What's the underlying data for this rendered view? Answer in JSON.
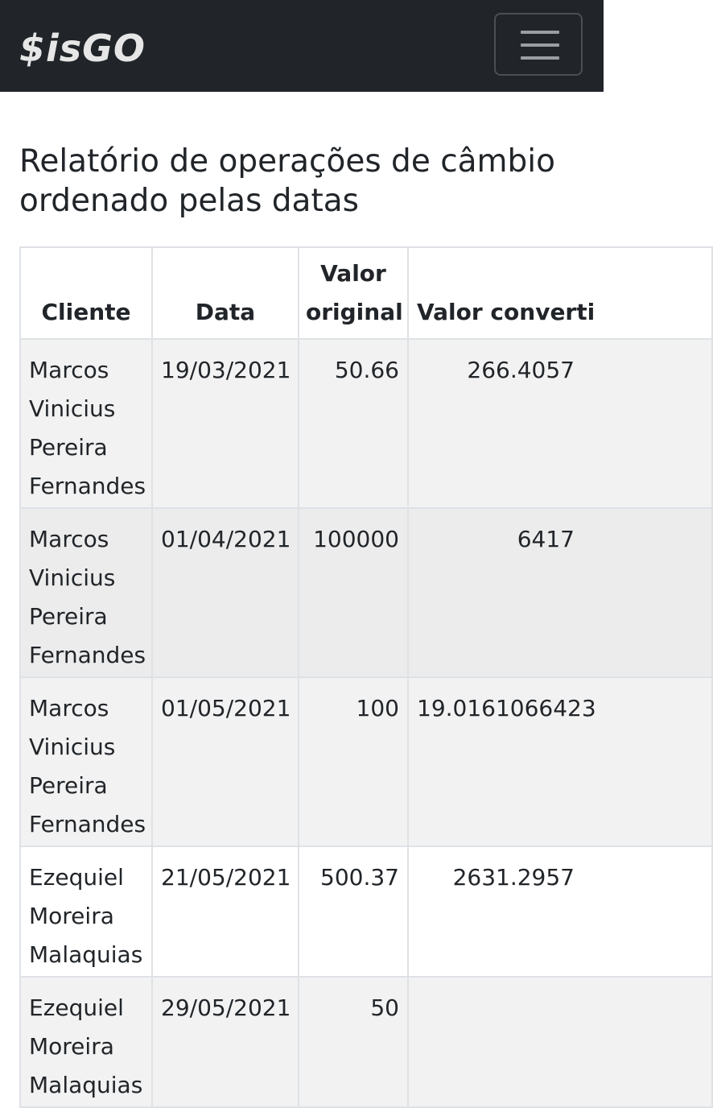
{
  "navbar": {
    "brand": "$isGO",
    "toggle_icon": "hamburger-menu-icon"
  },
  "page": {
    "title": "Relatório de operações de câmbio ordenado pelas datas"
  },
  "table": {
    "headers": {
      "cliente": "Cliente",
      "data": "Data",
      "valor_original_1": "Valor",
      "valor_original_2": "original",
      "valor_convertido": "Valor converti"
    },
    "rows": [
      {
        "cliente": "Marcos Vinicius Pereira Fernandes",
        "data": "19/03/2021",
        "valor_original": "50.66",
        "valor_convertido": "266.4057"
      },
      {
        "cliente": "Marcos Vinicius Pereira Fernandes",
        "data": "01/04/2021",
        "valor_original": "100000",
        "valor_convertido": "6417"
      },
      {
        "cliente": "Marcos Vinicius Pereira Fernandes",
        "data": "01/05/2021",
        "valor_original": "100",
        "valor_convertido": "19.0161066423"
      },
      {
        "cliente": "Ezequiel Moreira Malaquias",
        "data": "21/05/2021",
        "valor_original": "500.37",
        "valor_convertido": "2631.2957"
      },
      {
        "cliente": "Ezequiel Moreira Malaquias",
        "data": "29/05/2021",
        "valor_original": "50",
        "valor_convertido": ""
      }
    ]
  }
}
